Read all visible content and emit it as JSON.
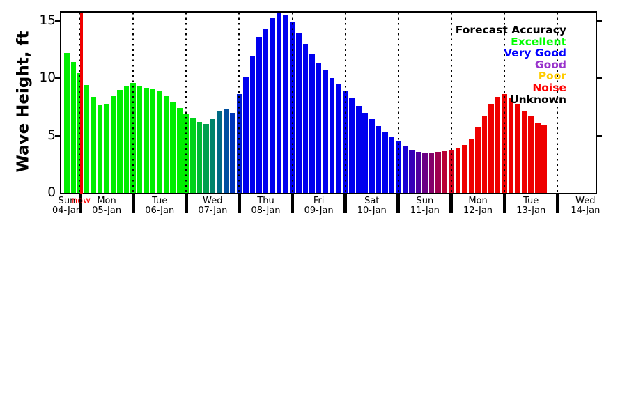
{
  "y_axis": {
    "title": "Wave Height, ft",
    "ticks": [
      {
        "label": "0",
        "value": 0
      },
      {
        "label": "5",
        "value": 5
      },
      {
        "label": "10",
        "value": 10
      },
      {
        "label": "15",
        "value": 15
      }
    ]
  },
  "x_axis": {
    "day_labels": [
      {
        "day": "Sun",
        "date": "04-Jan"
      },
      {
        "day": "Mon",
        "date": "05-Jan"
      },
      {
        "day": "Tue",
        "date": "06-Jan"
      },
      {
        "day": "Wed",
        "date": "07-Jan"
      },
      {
        "day": "Thu",
        "date": "08-Jan"
      },
      {
        "day": "Fri",
        "date": "09-Jan"
      },
      {
        "day": "Sat",
        "date": "10-Jan"
      },
      {
        "day": "Sun",
        "date": "11-Jan"
      },
      {
        "day": "Mon",
        "date": "12-Jan"
      },
      {
        "day": "Tue",
        "date": "13-Jan"
      },
      {
        "day": "Wed",
        "date": "14-Jan"
      }
    ]
  },
  "now_marker": {
    "label": "now",
    "color": "#ff0000"
  },
  "legend": {
    "title": "Forecast Accuracy",
    "title_color": "#000000",
    "entries": [
      {
        "label": "Excellent",
        "color": "#00FF00"
      },
      {
        "label": "Very Good",
        "color": "#0000FF"
      },
      {
        "label": "Good",
        "color": "#9933CC"
      },
      {
        "label": "Poor",
        "color": "#FFCC00"
      },
      {
        "label": "Noise",
        "color": "#FF0000"
      },
      {
        "label": "Unknown",
        "color": "#000000"
      }
    ]
  },
  "chart_data": {
    "type": "bar",
    "title": "",
    "xlabel": "",
    "ylabel": "Wave Height, ft",
    "ylim": [
      0,
      15.7
    ],
    "yticks": [
      0,
      5,
      10,
      15
    ],
    "grid": "vertical dotted lines at day boundaries",
    "legend_position": "top-right, text only, color-coded",
    "bars_per_day": 8,
    "interval_hours": 3,
    "values": [
      12.2,
      11.4,
      10.4,
      9.4,
      8.35,
      7.65,
      7.7,
      8.4,
      9.0,
      9.35,
      9.55,
      9.35,
      9.1,
      9.05,
      8.85,
      8.4,
      7.9,
      7.4,
      6.85,
      6.5,
      6.2,
      6.0,
      6.4,
      7.1,
      7.35,
      7.0,
      8.6,
      10.1,
      11.9,
      13.6,
      14.25,
      15.2,
      15.65,
      15.45,
      14.85,
      13.9,
      13.0,
      12.1,
      11.3,
      10.65,
      10.0,
      9.5,
      8.9,
      8.3,
      7.6,
      7.0,
      6.4,
      5.8,
      5.3,
      4.9,
      4.55,
      4.05,
      3.75,
      3.6,
      3.5,
      3.5,
      3.55,
      3.65,
      3.7,
      3.9,
      4.2,
      4.65,
      5.7,
      6.7,
      7.75,
      8.35,
      8.6,
      8.3,
      7.75,
      7.1,
      6.65,
      6.05,
      5.95
    ],
    "bar_colors": [
      "#00EE00",
      "#00EE00",
      "#00EE00",
      "#00EE00",
      "#00EE00",
      "#00EE00",
      "#00EE00",
      "#00EE00",
      "#00EE00",
      "#00EE00",
      "#00EE00",
      "#00EE00",
      "#00EE00",
      "#00EE00",
      "#00EE00",
      "#00EE00",
      "#00EE00",
      "#00EE00",
      "#00EE00",
      "#00D31A",
      "#00B935",
      "#009F4F",
      "#00846A",
      "#006A84",
      "#004F9F",
      "#0035B9",
      "#001AD3",
      "#0000EE",
      "#0000EE",
      "#0000EE",
      "#0000EE",
      "#0000EE",
      "#0000EE",
      "#0000EE",
      "#0000EE",
      "#0000EE",
      "#0000EE",
      "#0000EE",
      "#0000EE",
      "#0000EE",
      "#0000EE",
      "#0000EE",
      "#0000EE",
      "#0000EE",
      "#0000EE",
      "#0000EE",
      "#0000EE",
      "#0000EE",
      "#0000EE",
      "#0000EE",
      "#0000EE",
      "#1A00D3",
      "#3500B9",
      "#4F009F",
      "#6A0084",
      "#84006A",
      "#9F004F",
      "#B90035",
      "#D3001A",
      "#EE0000",
      "#EE0000",
      "#EE0000",
      "#EE0000",
      "#EE0000",
      "#EE0000",
      "#EE0000",
      "#EE0000",
      "#EE0000",
      "#EE0000",
      "#EE0000",
      "#EE0000",
      "#EE0000",
      "#EE0000"
    ]
  }
}
